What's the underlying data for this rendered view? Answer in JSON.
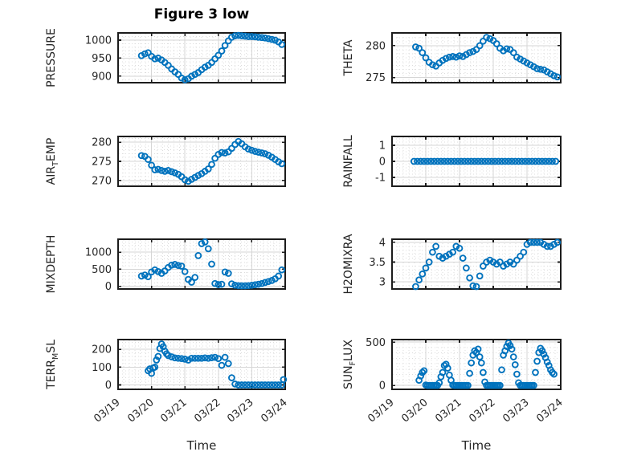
{
  "figure": {
    "title": "Figure 3 low",
    "xlabel": "Time",
    "background": "#ffffff",
    "marker_color": "#0072BD",
    "axis_color": "#1c1c1c",
    "grid_color": "#d6d6d6",
    "minor_grid_color": "#dcdcdc",
    "text_color": "#262626"
  },
  "x_axis": {
    "xlim": [
      19,
      24
    ],
    "xticks": [
      19,
      20,
      21,
      22,
      23,
      24
    ],
    "xtick_labels": [
      "03/19",
      "03/20",
      "03/21",
      "03/22",
      "03/23",
      "03/24"
    ],
    "x_units": "day of March (fractional)",
    "label": "Time"
  },
  "chart_data": [
    {
      "id": "pressure",
      "name": "PRESSURE",
      "type": "scatter",
      "marker": "open-circle",
      "ylabel_segments": [
        {
          "text": "PRESSURE",
          "sub": false
        }
      ],
      "yticks": [
        900,
        950,
        1000
      ],
      "ytick_labels": [
        "900",
        "950",
        "1000"
      ],
      "ylim": [
        882,
        1020
      ],
      "x": [
        19.7,
        19.8,
        19.9,
        20.0,
        20.1,
        20.2,
        20.3,
        20.4,
        20.5,
        20.6,
        20.7,
        20.8,
        20.9,
        21.0,
        21.1,
        21.2,
        21.3,
        21.4,
        21.5,
        21.6,
        21.7,
        21.8,
        21.9,
        22.0,
        22.1,
        22.2,
        22.3,
        22.4,
        22.5,
        22.6,
        22.7,
        22.8,
        22.9,
        23.0,
        23.1,
        23.2,
        23.3,
        23.4,
        23.5,
        23.6,
        23.7,
        23.8,
        23.9
      ],
      "y": [
        957,
        962,
        965,
        955,
        948,
        950,
        945,
        938,
        930,
        920,
        912,
        905,
        895,
        890,
        893,
        900,
        905,
        910,
        918,
        925,
        930,
        938,
        948,
        958,
        970,
        985,
        998,
        1008,
        1012,
        1013,
        1012,
        1011,
        1010,
        1010,
        1009,
        1008,
        1007,
        1006,
        1004,
        1002,
        1000,
        995,
        988
      ]
    },
    {
      "id": "theta",
      "name": "THETA",
      "type": "scatter",
      "marker": "open-circle",
      "ylabel_segments": [
        {
          "text": "THETA",
          "sub": false
        }
      ],
      "yticks": [
        275,
        280
      ],
      "ytick_labels": [
        "275",
        "280"
      ],
      "ylim": [
        274.2,
        282.0
      ],
      "x": [
        19.7,
        19.8,
        19.9,
        20.0,
        20.1,
        20.2,
        20.3,
        20.4,
        20.5,
        20.6,
        20.7,
        20.8,
        20.9,
        21.0,
        21.1,
        21.2,
        21.3,
        21.4,
        21.5,
        21.6,
        21.7,
        21.8,
        21.9,
        22.0,
        22.1,
        22.2,
        22.3,
        22.4,
        22.5,
        22.6,
        22.7,
        22.8,
        22.9,
        23.0,
        23.1,
        23.2,
        23.3,
        23.4,
        23.5,
        23.6,
        23.7,
        23.8,
        23.9
      ],
      "y": [
        279.8,
        279.6,
        278.9,
        278.1,
        277.4,
        277.0,
        276.8,
        277.3,
        277.7,
        278.0,
        278.2,
        278.3,
        278.2,
        278.4,
        278.3,
        278.6,
        278.9,
        279.1,
        279.4,
        280.0,
        280.7,
        281.3,
        281.1,
        280.8,
        280.3,
        279.6,
        279.2,
        279.5,
        279.4,
        278.9,
        278.2,
        277.9,
        277.6,
        277.3,
        277.0,
        276.7,
        276.4,
        276.3,
        276.2,
        275.9,
        275.6,
        275.3,
        275.1
      ]
    },
    {
      "id": "air_temp",
      "name": "AIR_TEMP",
      "type": "scatter",
      "marker": "open-circle",
      "ylabel_segments": [
        {
          "text": "AIR",
          "sub": false
        },
        {
          "text": "T",
          "sub": true
        },
        {
          "text": "EMP",
          "sub": false
        }
      ],
      "yticks": [
        270,
        275,
        280
      ],
      "ytick_labels": [
        "270",
        "275",
        "280"
      ],
      "ylim": [
        268.5,
        281.5
      ],
      "x": [
        19.7,
        19.8,
        19.9,
        20.0,
        20.1,
        20.2,
        20.3,
        20.4,
        20.5,
        20.6,
        20.7,
        20.8,
        20.9,
        21.0,
        21.1,
        21.2,
        21.3,
        21.4,
        21.5,
        21.6,
        21.7,
        21.8,
        21.9,
        22.0,
        22.1,
        22.2,
        22.3,
        22.4,
        22.5,
        22.6,
        22.7,
        22.8,
        22.9,
        23.0,
        23.1,
        23.2,
        23.3,
        23.4,
        23.5,
        23.6,
        23.7,
        23.8,
        23.9
      ],
      "y": [
        276.5,
        276.3,
        275.5,
        274.0,
        272.8,
        272.9,
        272.6,
        272.4,
        272.6,
        272.3,
        272.0,
        271.6,
        271.0,
        270.2,
        269.8,
        270.3,
        270.8,
        271.3,
        271.8,
        272.4,
        273.0,
        274.2,
        275.8,
        276.8,
        277.3,
        277.2,
        277.5,
        278.4,
        279.4,
        280.2,
        279.6,
        278.8,
        278.2,
        277.9,
        277.6,
        277.4,
        277.2,
        277.0,
        276.6,
        276.1,
        275.5,
        274.9,
        274.4
      ]
    },
    {
      "id": "rainfall",
      "name": "RAINFALL",
      "type": "scatter",
      "marker": "open-circle",
      "ylabel_segments": [
        {
          "text": "RAINFALL",
          "sub": false
        }
      ],
      "yticks": [
        -1,
        0,
        1
      ],
      "ytick_labels": [
        "-1",
        "0",
        "1"
      ],
      "ylim": [
        -1.55,
        1.55
      ],
      "x": [
        19.65,
        19.75,
        19.85,
        19.95,
        20.05,
        20.15,
        20.25,
        20.35,
        20.45,
        20.55,
        20.65,
        20.75,
        20.85,
        20.95,
        21.05,
        21.15,
        21.25,
        21.35,
        21.45,
        21.55,
        21.65,
        21.75,
        21.85,
        21.95,
        22.05,
        22.15,
        22.25,
        22.35,
        22.45,
        22.55,
        22.65,
        22.75,
        22.85,
        22.95,
        23.05,
        23.15,
        23.25,
        23.35,
        23.45,
        23.55,
        23.65,
        23.75,
        23.85
      ],
      "y": [
        0,
        0,
        0,
        0,
        0,
        0,
        0,
        0,
        0,
        0,
        0,
        0,
        0,
        0,
        0,
        0,
        0,
        0,
        0,
        0,
        0,
        0,
        0,
        0,
        0,
        0,
        0,
        0,
        0,
        0,
        0,
        0,
        0,
        0,
        0,
        0,
        0,
        0,
        0,
        0,
        0,
        0,
        0
      ]
    },
    {
      "id": "mixdepth",
      "name": "MIXDEPTH",
      "type": "scatter",
      "marker": "open-circle",
      "ylabel_segments": [
        {
          "text": "MIXDEPTH",
          "sub": false
        }
      ],
      "yticks": [
        0,
        500,
        1000
      ],
      "ytick_labels": [
        "0",
        "500",
        "1000"
      ],
      "ylim": [
        -80,
        1380
      ],
      "x": [
        19.7,
        19.8,
        19.9,
        20.0,
        20.1,
        20.2,
        20.3,
        20.4,
        20.5,
        20.6,
        20.7,
        20.8,
        20.9,
        21.0,
        21.1,
        21.2,
        21.3,
        21.4,
        21.5,
        21.6,
        21.7,
        21.8,
        21.9,
        22.0,
        22.1,
        22.2,
        22.3,
        22.4,
        22.5,
        22.6,
        22.7,
        22.8,
        22.9,
        23.0,
        23.1,
        23.2,
        23.3,
        23.4,
        23.5,
        23.6,
        23.7,
        23.8,
        23.9
      ],
      "y": [
        300,
        330,
        280,
        420,
        480,
        430,
        380,
        450,
        550,
        620,
        640,
        610,
        590,
        430,
        200,
        120,
        260,
        900,
        1250,
        1300,
        1100,
        650,
        80,
        50,
        60,
        420,
        380,
        70,
        30,
        20,
        15,
        15,
        20,
        30,
        45,
        60,
        80,
        110,
        140,
        170,
        220,
        300,
        480
      ]
    },
    {
      "id": "h2omixra",
      "name": "H2OMIXRA",
      "type": "scatter",
      "marker": "open-circle",
      "ylabel_segments": [
        {
          "text": "H2OMIXRA",
          "sub": false
        }
      ],
      "yticks": [
        3,
        3.5,
        4
      ],
      "ytick_labels": [
        "3",
        "3.5",
        "4"
      ],
      "ylim": [
        2.82,
        4.08
      ],
      "x": [
        19.7,
        19.8,
        19.9,
        20.0,
        20.1,
        20.2,
        20.3,
        20.4,
        20.5,
        20.6,
        20.7,
        20.8,
        20.9,
        21.0,
        21.1,
        21.2,
        21.3,
        21.4,
        21.5,
        21.6,
        21.7,
        21.8,
        21.9,
        22.0,
        22.1,
        22.2,
        22.3,
        22.4,
        22.5,
        22.6,
        22.7,
        22.8,
        22.9,
        23.0,
        23.1,
        23.2,
        23.3,
        23.4,
        23.5,
        23.6,
        23.7,
        23.8,
        23.9
      ],
      "y": [
        2.88,
        3.05,
        3.2,
        3.35,
        3.5,
        3.75,
        3.9,
        3.65,
        3.6,
        3.65,
        3.7,
        3.75,
        3.9,
        3.85,
        3.6,
        3.35,
        3.1,
        2.9,
        2.88,
        3.15,
        3.4,
        3.5,
        3.55,
        3.5,
        3.45,
        3.5,
        3.4,
        3.45,
        3.5,
        3.45,
        3.55,
        3.65,
        3.75,
        3.95,
        4.0,
        4.0,
        4.0,
        4.0,
        3.95,
        3.9,
        3.9,
        3.95,
        4.0
      ]
    },
    {
      "id": "terr_msl",
      "name": "TERR_MSL",
      "type": "scatter",
      "marker": "open-circle",
      "ylabel_segments": [
        {
          "text": "TERR",
          "sub": false
        },
        {
          "text": "M",
          "sub": true
        },
        {
          "text": "SL",
          "sub": false
        }
      ],
      "yticks": [
        0,
        100,
        200
      ],
      "ytick_labels": [
        "0",
        "100",
        "200"
      ],
      "ylim": [
        -25,
        255
      ],
      "x": [
        19.9,
        19.95,
        20.0,
        20.05,
        20.1,
        20.15,
        20.2,
        20.25,
        20.3,
        20.35,
        20.4,
        20.45,
        20.5,
        20.6,
        20.7,
        20.8,
        20.9,
        21.0,
        21.1,
        21.2,
        21.3,
        21.4,
        21.5,
        21.6,
        21.7,
        21.8,
        21.9,
        22.0,
        22.1,
        22.2,
        22.3,
        22.4,
        22.5,
        22.6,
        22.7,
        22.8,
        22.9,
        23.0,
        23.1,
        23.2,
        23.3,
        23.4,
        23.5,
        23.6,
        23.7,
        23.8,
        23.9,
        23.95
      ],
      "y": [
        80,
        90,
        65,
        95,
        100,
        140,
        160,
        205,
        230,
        215,
        190,
        175,
        165,
        158,
        152,
        150,
        148,
        145,
        140,
        150,
        150,
        150,
        150,
        152,
        150,
        153,
        155,
        148,
        110,
        155,
        120,
        40,
        5,
        0,
        0,
        0,
        0,
        0,
        0,
        0,
        0,
        0,
        0,
        0,
        0,
        0,
        0,
        30
      ]
    },
    {
      "id": "sun_flux",
      "name": "SUN_FLUX",
      "type": "scatter",
      "marker": "open-circle",
      "ylabel_segments": [
        {
          "text": "SUN",
          "sub": false
        },
        {
          "text": "F",
          "sub": true
        },
        {
          "text": "LUX",
          "sub": false
        }
      ],
      "yticks": [
        0,
        500
      ],
      "ytick_labels": [
        "0",
        "500"
      ],
      "ylim": [
        -45,
        530
      ],
      "x": [
        19.8,
        19.85,
        19.9,
        19.95,
        20.0,
        20.05,
        20.1,
        20.15,
        20.2,
        20.25,
        20.3,
        20.35,
        20.4,
        20.45,
        20.5,
        20.55,
        20.6,
        20.65,
        20.7,
        20.75,
        20.8,
        20.85,
        20.9,
        20.95,
        21.0,
        21.05,
        21.1,
        21.15,
        21.2,
        21.25,
        21.3,
        21.35,
        21.4,
        21.45,
        21.5,
        21.55,
        21.6,
        21.65,
        21.7,
        21.75,
        21.8,
        21.85,
        21.9,
        21.95,
        22.0,
        22.05,
        22.1,
        22.15,
        22.2,
        22.25,
        22.3,
        22.35,
        22.4,
        22.45,
        22.5,
        22.55,
        22.6,
        22.65,
        22.7,
        22.75,
        22.8,
        22.85,
        22.9,
        22.95,
        23.0,
        23.05,
        23.1,
        23.15,
        23.2,
        23.25,
        23.3,
        23.35,
        23.4,
        23.45,
        23.5,
        23.55,
        23.6,
        23.65,
        23.7,
        23.75,
        23.8
      ],
      "y": [
        60,
        110,
        150,
        170,
        5,
        0,
        0,
        0,
        0,
        0,
        0,
        0,
        30,
        100,
        150,
        230,
        245,
        200,
        120,
        60,
        5,
        0,
        0,
        0,
        0,
        0,
        0,
        0,
        0,
        0,
        140,
        260,
        350,
        400,
        380,
        420,
        330,
        260,
        150,
        40,
        0,
        0,
        0,
        0,
        0,
        0,
        0,
        0,
        0,
        180,
        350,
        400,
        450,
        490,
        460,
        420,
        330,
        240,
        130,
        30,
        0,
        0,
        0,
        0,
        0,
        0,
        0,
        0,
        0,
        150,
        280,
        380,
        430,
        400,
        360,
        320,
        270,
        230,
        180,
        150,
        130
      ]
    }
  ]
}
